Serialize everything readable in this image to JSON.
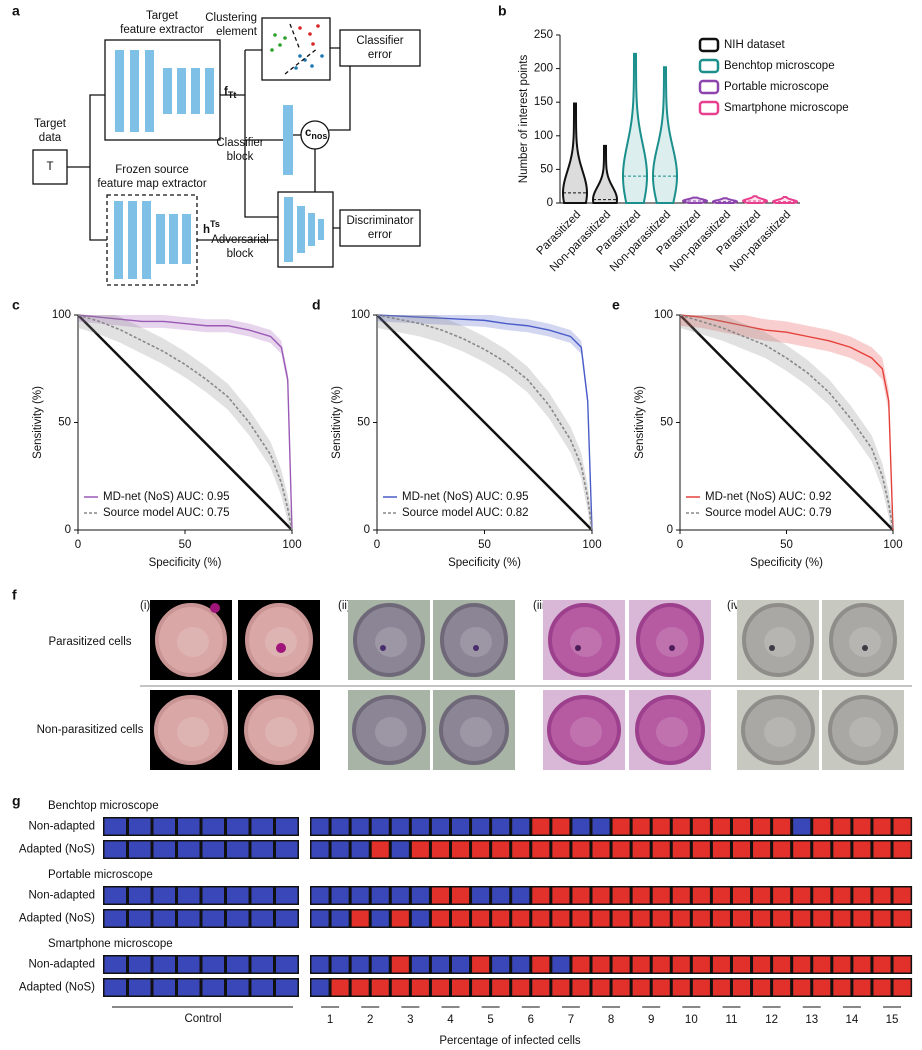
{
  "panel_labels": [
    "a",
    "b",
    "c",
    "d",
    "e",
    "f",
    "g"
  ],
  "diagram": {
    "target_data": [
      "Target",
      "data"
    ],
    "target_symbol": "T",
    "target_extractor": [
      "Target",
      "feature extractor"
    ],
    "source_extractor": [
      "Frozen source",
      "feature map extractor"
    ],
    "f_label": {
      "base": "f",
      "sub": "Tt"
    },
    "h_label": {
      "base": "h",
      "sup": "Ts"
    },
    "clustering": [
      "Clustering",
      "element"
    ],
    "classifier_error": [
      "Classifier",
      "error"
    ],
    "classifier_block": [
      "Classifier",
      "block"
    ],
    "c_label": {
      "base": "c",
      "sub": "nos"
    },
    "adversarial_block": [
      "Adversarial",
      "block"
    ],
    "discriminator_error": [
      "Discriminator",
      "error"
    ]
  },
  "chart_data": [
    {
      "type": "violin",
      "ylabel": "Number of interest points",
      "ylim": [
        0,
        250
      ],
      "yticks": [
        0,
        50,
        100,
        150,
        200,
        250
      ],
      "legend": "upper right",
      "categories": [
        "Parasitized",
        "Non-parasitized",
        "Parasitized",
        "Non-parasitized",
        "Parasitized",
        "Non-parasitized",
        "Parasitized",
        "Non-parasitized"
      ],
      "series": [
        {
          "name": "NIH dataset",
          "color": "#111111",
          "max": [
            148,
            85,
            null,
            null,
            null,
            null,
            null,
            null
          ],
          "median": [
            15,
            5,
            null,
            null,
            null,
            null,
            null,
            null
          ]
        },
        {
          "name": "Benchtop microscope",
          "color": "#1a8f8c",
          "max": [
            null,
            null,
            222,
            202,
            null,
            null,
            null,
            null
          ],
          "median": [
            null,
            null,
            40,
            40,
            null,
            null,
            null,
            null
          ]
        },
        {
          "name": "Portable microscope",
          "color": "#8e44ad",
          "max": [
            null,
            null,
            null,
            null,
            8,
            7,
            null,
            null
          ],
          "median": [
            null,
            null,
            null,
            null,
            3,
            2,
            null,
            null
          ]
        },
        {
          "name": "Smartphone microscope",
          "color": "#e8408f",
          "max": [
            null,
            null,
            null,
            null,
            null,
            null,
            10,
            9
          ],
          "median": [
            null,
            null,
            null,
            null,
            null,
            null,
            3,
            2
          ]
        }
      ]
    },
    {
      "type": "line",
      "xlabel": "Specificity (%)",
      "ylabel": "Sensitivity (%)",
      "xlim": [
        0,
        100
      ],
      "ylim": [
        0,
        100
      ],
      "xticks": [
        0,
        50,
        100
      ],
      "yticks": [
        0,
        50,
        100
      ],
      "legend": "lower left",
      "x": [
        0,
        10,
        20,
        30,
        40,
        50,
        60,
        70,
        80,
        90,
        95,
        98,
        100
      ],
      "series": [
        {
          "name": "MD-net (NoS) AUC: 0.95",
          "color": "#9b59b6",
          "style": "solid",
          "ci": 3,
          "values": [
            100,
            99,
            98,
            97,
            97,
            96,
            95,
            95,
            93,
            90,
            85,
            70,
            0
          ]
        },
        {
          "name": "Source model AUC: 0.75",
          "color": "#888888",
          "style": "dashed",
          "ci": 6,
          "values": [
            100,
            97,
            93,
            88,
            83,
            77,
            70,
            62,
            50,
            35,
            22,
            10,
            0
          ]
        }
      ]
    },
    {
      "type": "line",
      "xlabel": "Specificity (%)",
      "ylabel": "Sensitivity (%)",
      "xlim": [
        0,
        100
      ],
      "ylim": [
        0,
        100
      ],
      "xticks": [
        0,
        50,
        100
      ],
      "yticks": [
        0,
        50,
        100
      ],
      "legend": "lower left",
      "x": [
        0,
        10,
        20,
        30,
        40,
        50,
        60,
        70,
        80,
        90,
        95,
        98,
        100
      ],
      "series": [
        {
          "name": "MD-net (NoS) AUC: 0.95",
          "color": "#4a5cc7",
          "style": "solid",
          "ci": 3,
          "values": [
            100,
            99.5,
            99,
            98.5,
            98,
            97.5,
            96,
            95,
            93,
            90,
            85,
            60,
            0
          ]
        },
        {
          "name": "Source model AUC: 0.82",
          "color": "#888888",
          "style": "dashed",
          "ci": 6,
          "values": [
            100,
            98,
            96,
            93,
            89,
            84,
            78,
            70,
            58,
            42,
            30,
            15,
            0
          ]
        }
      ]
    },
    {
      "type": "line",
      "xlabel": "Specificity (%)",
      "ylabel": "Sensitivity (%)",
      "xlim": [
        0,
        100
      ],
      "ylim": [
        0,
        100
      ],
      "xticks": [
        0,
        50,
        100
      ],
      "yticks": [
        0,
        50,
        100
      ],
      "legend": "lower left",
      "x": [
        0,
        10,
        20,
        30,
        40,
        50,
        60,
        70,
        80,
        90,
        95,
        98,
        100
      ],
      "series": [
        {
          "name": "MD-net (NoS) AUC: 0.92",
          "color": "#e5403a",
          "style": "solid",
          "ci": 5,
          "values": [
            100,
            99,
            97,
            95,
            93,
            92,
            90,
            88,
            85,
            80,
            75,
            60,
            0
          ]
        },
        {
          "name": "Source model AUC: 0.79",
          "color": "#888888",
          "style": "dashed",
          "ci": 6,
          "values": [
            100,
            97,
            94,
            90,
            86,
            80,
            73,
            64,
            52,
            38,
            25,
            12,
            0
          ]
        }
      ]
    }
  ],
  "cells": {
    "columns": [
      "(i)",
      "(ii)",
      "(iii)",
      "(iv)"
    ],
    "rows": [
      "Parasitized cells",
      "Non-parasitized cells"
    ]
  },
  "results": {
    "colors": [
      "#3a47b8",
      "#e2302a"
    ],
    "groups": [
      {
        "title": "Benchtop microscope",
        "rows": [
          {
            "label": "Non-adapted",
            "control": [
              0,
              0,
              0,
              0,
              0,
              0,
              0,
              0
            ],
            "values": [
              0,
              0,
              0,
              0,
              0,
              0,
              0,
              0,
              0,
              0,
              0,
              1,
              1,
              0,
              0,
              1,
              1,
              1,
              1,
              1,
              1,
              1,
              1,
              1,
              0,
              1,
              1,
              1,
              1,
              1
            ]
          },
          {
            "label": "Adapted (NoS)",
            "control": [
              0,
              0,
              0,
              0,
              0,
              0,
              0,
              0
            ],
            "values": [
              0,
              0,
              0,
              1,
              0,
              1,
              1,
              1,
              1,
              1,
              1,
              1,
              1,
              1,
              1,
              1,
              1,
              1,
              1,
              1,
              1,
              1,
              1,
              1,
              1,
              1,
              1,
              1,
              1,
              1
            ]
          }
        ]
      },
      {
        "title": "Portable microscope",
        "rows": [
          {
            "label": "Non-adapted",
            "control": [
              0,
              0,
              0,
              0,
              0,
              0,
              0,
              0
            ],
            "values": [
              0,
              0,
              0,
              0,
              0,
              0,
              1,
              1,
              0,
              0,
              0,
              1,
              1,
              1,
              1,
              1,
              1,
              1,
              1,
              1,
              1,
              1,
              1,
              1,
              1,
              1,
              1,
              1,
              1,
              1
            ]
          },
          {
            "label": "Adapted (NoS)",
            "control": [
              0,
              0,
              0,
              0,
              0,
              0,
              0,
              0
            ],
            "values": [
              0,
              0,
              1,
              0,
              1,
              0,
              1,
              1,
              1,
              1,
              1,
              1,
              1,
              1,
              1,
              1,
              1,
              1,
              1,
              1,
              1,
              1,
              1,
              1,
              1,
              1,
              1,
              1,
              1,
              1
            ]
          }
        ]
      },
      {
        "title": "Smartphone microscope",
        "rows": [
          {
            "label": "Non-adapted",
            "control": [
              0,
              0,
              0,
              0,
              0,
              0,
              0,
              0
            ],
            "values": [
              0,
              0,
              0,
              0,
              1,
              0,
              0,
              0,
              1,
              0,
              0,
              1,
              0,
              1,
              1,
              1,
              1,
              1,
              1,
              1,
              1,
              1,
              1,
              1,
              1,
              1,
              1,
              1,
              1,
              1
            ]
          },
          {
            "label": "Adapted (NoS)",
            "control": [
              0,
              0,
              0,
              0,
              0,
              0,
              0,
              0
            ],
            "values": [
              0,
              1,
              1,
              1,
              1,
              1,
              1,
              1,
              1,
              1,
              1,
              1,
              1,
              1,
              1,
              1,
              1,
              1,
              1,
              1,
              1,
              1,
              1,
              1,
              1,
              1,
              1,
              1,
              1,
              1
            ]
          }
        ]
      }
    ],
    "control_label": "Control",
    "percentages": [
      1,
      2,
      3,
      4,
      5,
      6,
      7,
      8,
      9,
      10,
      11,
      12,
      13,
      14,
      15
    ],
    "xlabel": "Percentage of infected cells"
  }
}
